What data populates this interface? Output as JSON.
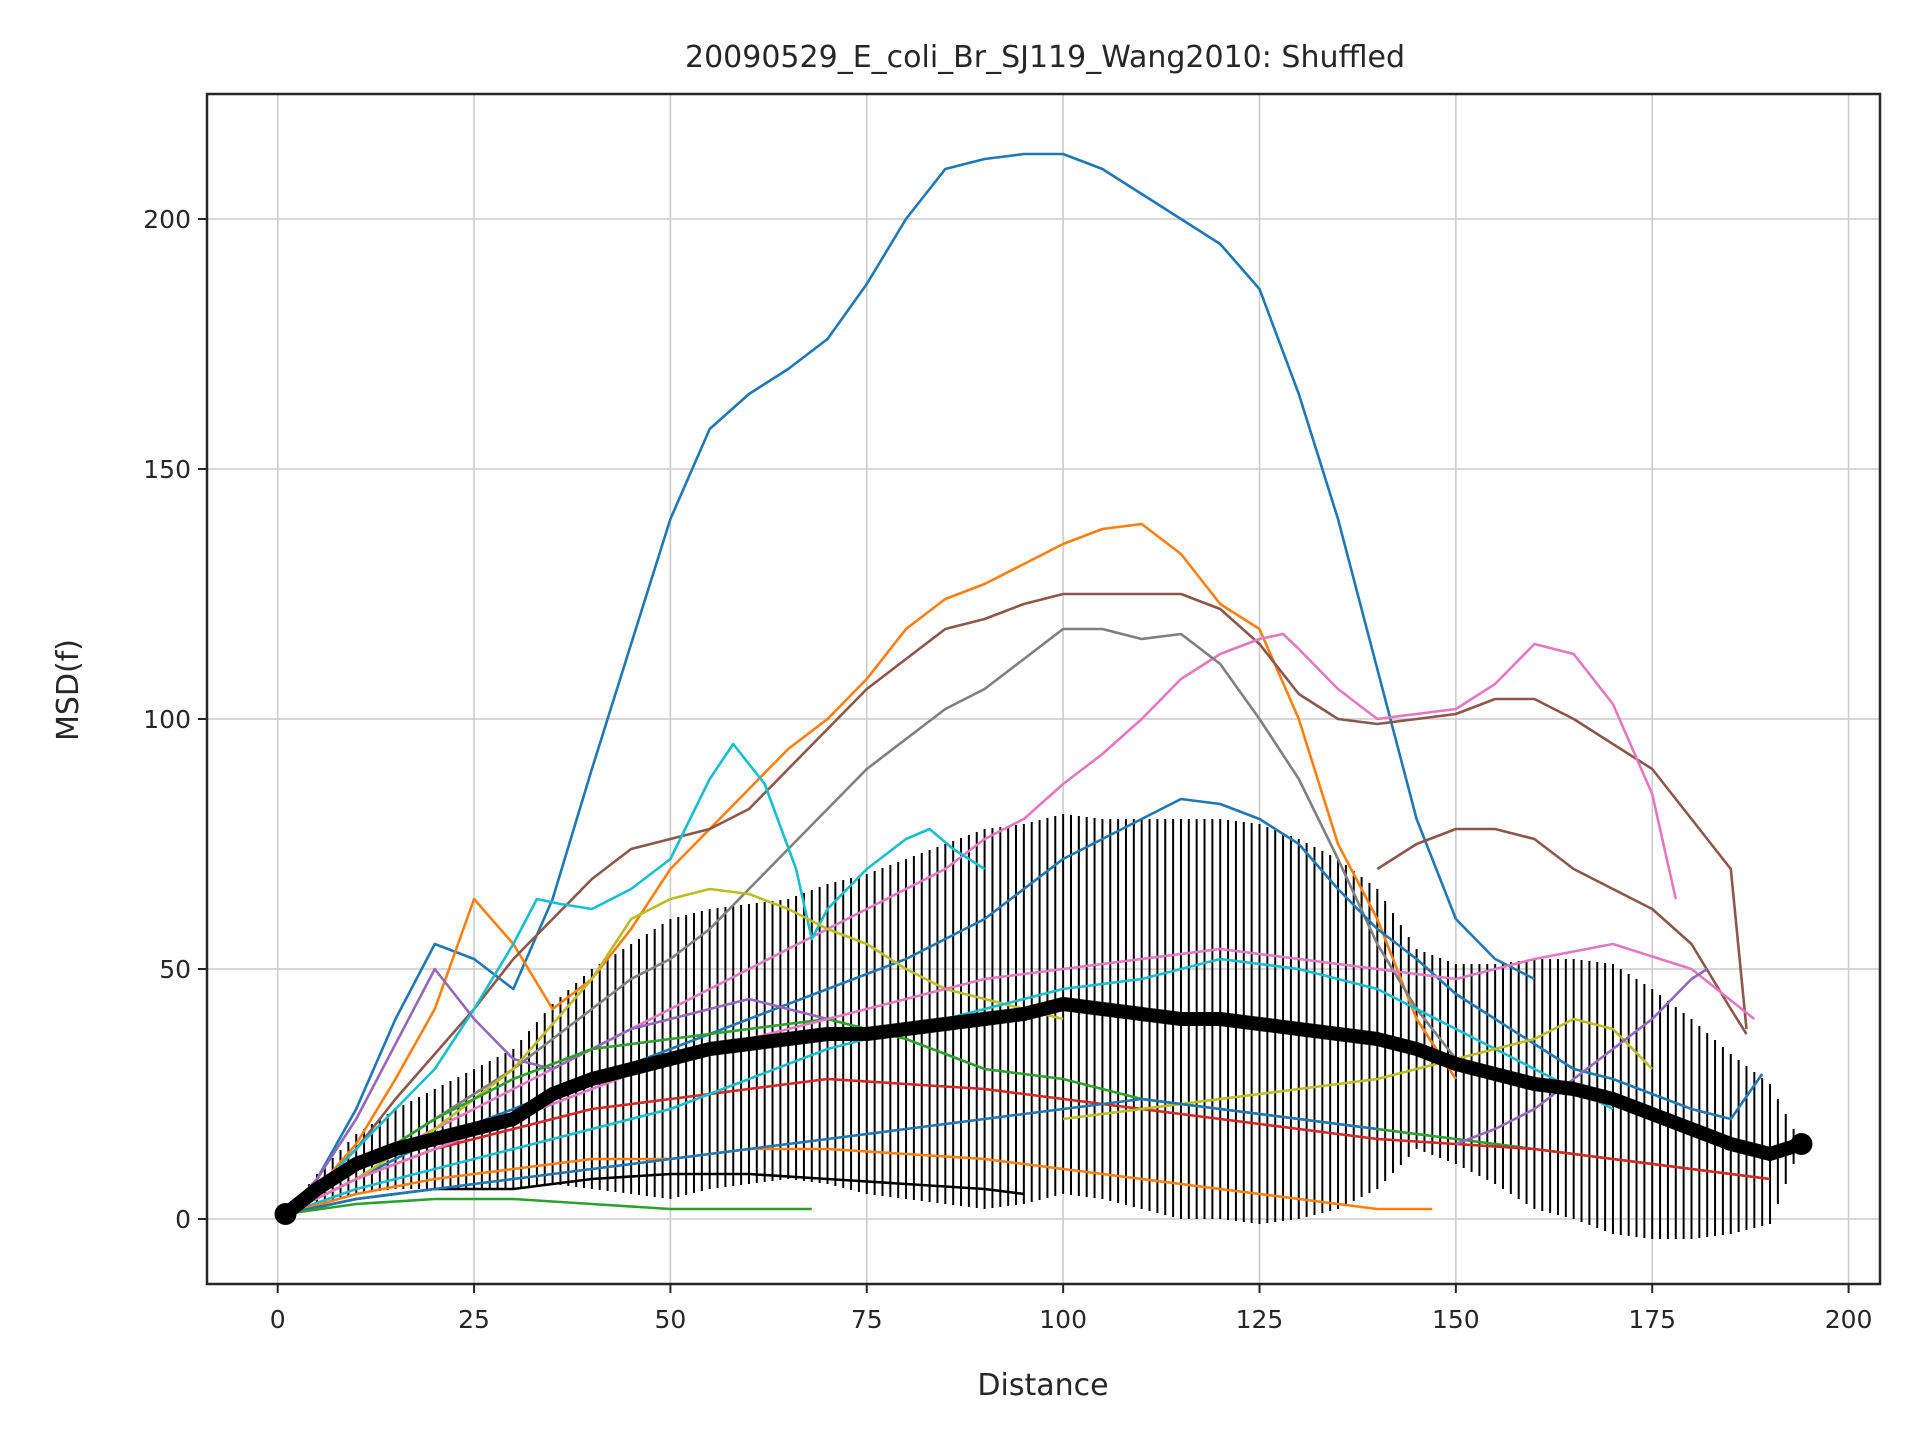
{
  "chart_data": {
    "type": "line",
    "title": "20090529_E_coli_Br_SJ119_Wang2010: Shuffled",
    "xlabel": "Distance",
    "ylabel": "MSD(f)",
    "xlim": [
      -9,
      204
    ],
    "ylim": [
      -13,
      225
    ],
    "xticks": [
      0,
      25,
      50,
      75,
      100,
      125,
      150,
      175,
      200
    ],
    "yticks": [
      0,
      50,
      100,
      150,
      200
    ],
    "grid": true,
    "legend": "none",
    "series": [
      {
        "color": "#1f77b4",
        "x": [
          1,
          5,
          10,
          15,
          20,
          25,
          30,
          35,
          40,
          45,
          50,
          55,
          60,
          65,
          70,
          75,
          80,
          85,
          90,
          95,
          100,
          105,
          110,
          115,
          120,
          125,
          130,
          135,
          140,
          145,
          150,
          155,
          160
        ],
        "y": [
          1,
          8,
          22,
          40,
          55,
          52,
          46,
          64,
          90,
          115,
          140,
          158,
          165,
          170,
          176,
          187,
          200,
          210,
          212,
          213,
          213,
          210,
          205,
          200,
          195,
          186,
          165,
          140,
          110,
          80,
          60,
          52,
          48
        ]
      },
      {
        "color": "#ff7f0e",
        "x": [
          1,
          5,
          10,
          15,
          20,
          25,
          30,
          35,
          40,
          45,
          50,
          55,
          60,
          65,
          70,
          75,
          80,
          85,
          90,
          95,
          100,
          105,
          110,
          115,
          120,
          125,
          130,
          135,
          140,
          145,
          150
        ],
        "y": [
          1,
          6,
          15,
          28,
          42,
          64,
          55,
          42,
          48,
          58,
          70,
          78,
          86,
          94,
          100,
          108,
          118,
          124,
          127,
          131,
          135,
          138,
          139,
          133,
          123,
          118,
          100,
          75,
          60,
          40,
          28
        ]
      },
      {
        "color": "#8c564b",
        "x": [
          1,
          5,
          10,
          15,
          20,
          25,
          30,
          35,
          40,
          45,
          50,
          55,
          60,
          65,
          70,
          75,
          80,
          85,
          90,
          95,
          100,
          105,
          110,
          115,
          120,
          125,
          130,
          135,
          140,
          145,
          150,
          155,
          160,
          165,
          170,
          175,
          180,
          185,
          187
        ],
        "y": [
          1,
          6,
          14,
          24,
          33,
          42,
          52,
          60,
          68,
          74,
          76,
          78,
          82,
          90,
          98,
          106,
          112,
          118,
          120,
          123,
          125,
          125,
          125,
          125,
          122,
          115,
          105,
          100,
          99,
          100,
          101,
          104,
          104,
          100,
          95,
          90,
          80,
          70,
          38
        ]
      },
      {
        "color": "#e377c2",
        "x": [
          1,
          5,
          10,
          15,
          20,
          25,
          30,
          35,
          40,
          45,
          50,
          55,
          60,
          65,
          70,
          75,
          80,
          85,
          90,
          95,
          100,
          105,
          110,
          115,
          120,
          125,
          128,
          130,
          135,
          140,
          145,
          150,
          155,
          160,
          165,
          170,
          175,
          178
        ],
        "y": [
          1,
          5,
          10,
          14,
          18,
          22,
          26,
          30,
          34,
          38,
          42,
          46,
          50,
          54,
          58,
          62,
          66,
          70,
          76,
          80,
          87,
          93,
          100,
          108,
          113,
          116,
          117,
          114,
          106,
          100,
          101,
          102,
          107,
          115,
          113,
          103,
          85,
          64
        ]
      },
      {
        "color": "#7f7f7f",
        "x": [
          1,
          5,
          10,
          15,
          20,
          25,
          30,
          35,
          40,
          45,
          50,
          55,
          60,
          65,
          70,
          75,
          80,
          85,
          90,
          95,
          100,
          105,
          110,
          115,
          120,
          125,
          130,
          135,
          140,
          145,
          150
        ],
        "y": [
          1,
          5,
          10,
          15,
          20,
          25,
          30,
          36,
          42,
          48,
          52,
          58,
          66,
          74,
          82,
          90,
          96,
          102,
          106,
          112,
          118,
          118,
          116,
          117,
          111,
          100,
          88,
          72,
          55,
          42,
          32
        ]
      },
      {
        "color": "#17becf",
        "x": [
          1,
          5,
          10,
          15,
          20,
          25,
          30,
          33,
          36,
          40,
          45,
          50,
          55,
          58,
          62,
          66,
          68,
          70,
          75,
          80,
          83,
          86,
          90
        ],
        "y": [
          1,
          6,
          14,
          22,
          30,
          42,
          55,
          64,
          63,
          62,
          66,
          72,
          88,
          95,
          87,
          70,
          56,
          62,
          70,
          76,
          78,
          74,
          70
        ]
      },
      {
        "color": "#1f77b4",
        "x": [
          1,
          10,
          20,
          30,
          40,
          50,
          60,
          70,
          80,
          90,
          100,
          110,
          115,
          120,
          125,
          130,
          135,
          140,
          145,
          150,
          155,
          160,
          165,
          170,
          175,
          180,
          185,
          189
        ],
        "y": [
          1,
          8,
          16,
          22,
          28,
          34,
          40,
          46,
          52,
          60,
          72,
          80,
          84,
          83,
          80,
          75,
          66,
          58,
          52,
          45,
          40,
          35,
          30,
          28,
          25,
          22,
          20,
          29
        ]
      },
      {
        "color": "#8c564b",
        "x": [
          140,
          145,
          150,
          155,
          160,
          165,
          170,
          175,
          180,
          185,
          187
        ],
        "y": [
          70,
          75,
          78,
          78,
          76,
          70,
          66,
          62,
          55,
          42,
          37
        ]
      },
      {
        "color": "#9467bd",
        "x": [
          1,
          5,
          10,
          15,
          20,
          25,
          30,
          35,
          40,
          45,
          50,
          55,
          60,
          65,
          70
        ],
        "y": [
          1,
          8,
          20,
          35,
          50,
          40,
          32,
          30,
          34,
          38,
          40,
          42,
          44,
          42,
          40
        ]
      },
      {
        "color": "#bcbd22",
        "x": [
          1,
          10,
          20,
          30,
          40,
          45,
          50,
          55,
          60,
          65,
          70,
          75,
          80,
          85,
          90,
          95,
          100
        ],
        "y": [
          1,
          8,
          18,
          30,
          48,
          60,
          64,
          66,
          65,
          62,
          58,
          55,
          50,
          46,
          44,
          42,
          40
        ]
      },
      {
        "color": "#2ca02c",
        "x": [
          1,
          10,
          20,
          30,
          40,
          50,
          60,
          70,
          80,
          90,
          100,
          110,
          120,
          130,
          140,
          150,
          160,
          170,
          180,
          190
        ],
        "y": [
          1,
          10,
          20,
          28,
          34,
          36,
          38,
          40,
          36,
          30,
          28,
          24,
          22,
          20,
          18,
          16,
          14,
          12,
          10,
          8
        ]
      },
      {
        "color": "#d62728",
        "x": [
          1,
          10,
          20,
          30,
          40,
          50,
          60,
          70,
          80,
          90,
          100,
          110,
          120,
          130,
          140,
          150,
          160,
          170,
          180,
          190
        ],
        "y": [
          1,
          8,
          14,
          18,
          22,
          24,
          26,
          28,
          27,
          26,
          24,
          22,
          20,
          18,
          16,
          15,
          14,
          12,
          10,
          8
        ]
      },
      {
        "color": "#17becf",
        "x": [
          1,
          10,
          20,
          30,
          40,
          50,
          60,
          70,
          80,
          90,
          100,
          110,
          120,
          130,
          140,
          150,
          160,
          170
        ],
        "y": [
          1,
          6,
          10,
          14,
          18,
          22,
          28,
          34,
          38,
          42,
          46,
          48,
          52,
          50,
          46,
          38,
          30,
          22
        ]
      },
      {
        "color": "#ff7f0e",
        "x": [
          1,
          10,
          20,
          30,
          40,
          50,
          60,
          70,
          80,
          90,
          100,
          110,
          120,
          130,
          140,
          147
        ],
        "y": [
          1,
          5,
          8,
          10,
          12,
          12,
          14,
          14,
          13,
          12,
          10,
          8,
          6,
          4,
          2,
          2
        ]
      },
      {
        "color": "#e377c2",
        "x": [
          1,
          10,
          20,
          30,
          40,
          50,
          60,
          70,
          80,
          90,
          100,
          110,
          120,
          130,
          140,
          150,
          160,
          170,
          180,
          188
        ],
        "y": [
          1,
          8,
          14,
          20,
          26,
          32,
          36,
          40,
          44,
          48,
          50,
          52,
          54,
          52,
          50,
          48,
          52,
          55,
          50,
          40
        ]
      },
      {
        "color": "#bcbd22",
        "x": [
          100,
          110,
          120,
          130,
          140,
          150,
          160,
          165,
          170,
          175
        ],
        "y": [
          20,
          22,
          24,
          26,
          28,
          32,
          36,
          40,
          38,
          30
        ]
      },
      {
        "color": "#9467bd",
        "x": [
          150,
          155,
          160,
          165,
          170,
          175,
          180,
          182
        ],
        "y": [
          15,
          18,
          22,
          28,
          34,
          40,
          48,
          50
        ]
      },
      {
        "color": "#000000",
        "x": [
          1,
          10,
          20,
          30,
          40,
          50,
          60,
          70,
          80,
          90,
          95
        ],
        "y": [
          1,
          4,
          6,
          6,
          8,
          9,
          9,
          8,
          7,
          6,
          5
        ]
      },
      {
        "color": "#1f77b4",
        "x": [
          1,
          10,
          20,
          30,
          40,
          50,
          60,
          70,
          80,
          90,
          100,
          110,
          120,
          130,
          140
        ],
        "y": [
          1,
          4,
          6,
          8,
          10,
          12,
          14,
          16,
          18,
          20,
          22,
          24,
          22,
          20,
          18
        ]
      },
      {
        "color": "#2ca02c",
        "x": [
          1,
          10,
          20,
          30,
          40,
          50,
          60,
          68
        ],
        "y": [
          1,
          3,
          4,
          4,
          3,
          2,
          2,
          2
        ]
      }
    ],
    "mean": {
      "color": "#000000",
      "x": [
        1,
        5,
        10,
        15,
        20,
        25,
        30,
        35,
        40,
        45,
        50,
        55,
        60,
        65,
        70,
        75,
        80,
        85,
        90,
        95,
        100,
        105,
        110,
        115,
        120,
        125,
        130,
        135,
        140,
        145,
        150,
        155,
        160,
        165,
        170,
        175,
        180,
        185,
        190,
        194
      ],
      "y": [
        1,
        6,
        11,
        14,
        16,
        18,
        20,
        25,
        28,
        30,
        32,
        34,
        35,
        36,
        37,
        37,
        38,
        39,
        40,
        41,
        43,
        42,
        41,
        40,
        40,
        39,
        38,
        37,
        36,
        34,
        31,
        29,
        27,
        26,
        24,
        21,
        18,
        15,
        13,
        15
      ],
      "err": [
        0,
        3,
        6,
        8,
        10,
        12,
        14,
        18,
        22,
        25,
        28,
        28,
        28,
        28,
        30,
        32,
        34,
        36,
        38,
        38,
        38,
        38,
        39,
        40,
        40,
        40,
        38,
        35,
        30,
        20,
        20,
        22,
        25,
        26,
        27,
        25,
        22,
        18,
        14,
        0
      ]
    }
  }
}
